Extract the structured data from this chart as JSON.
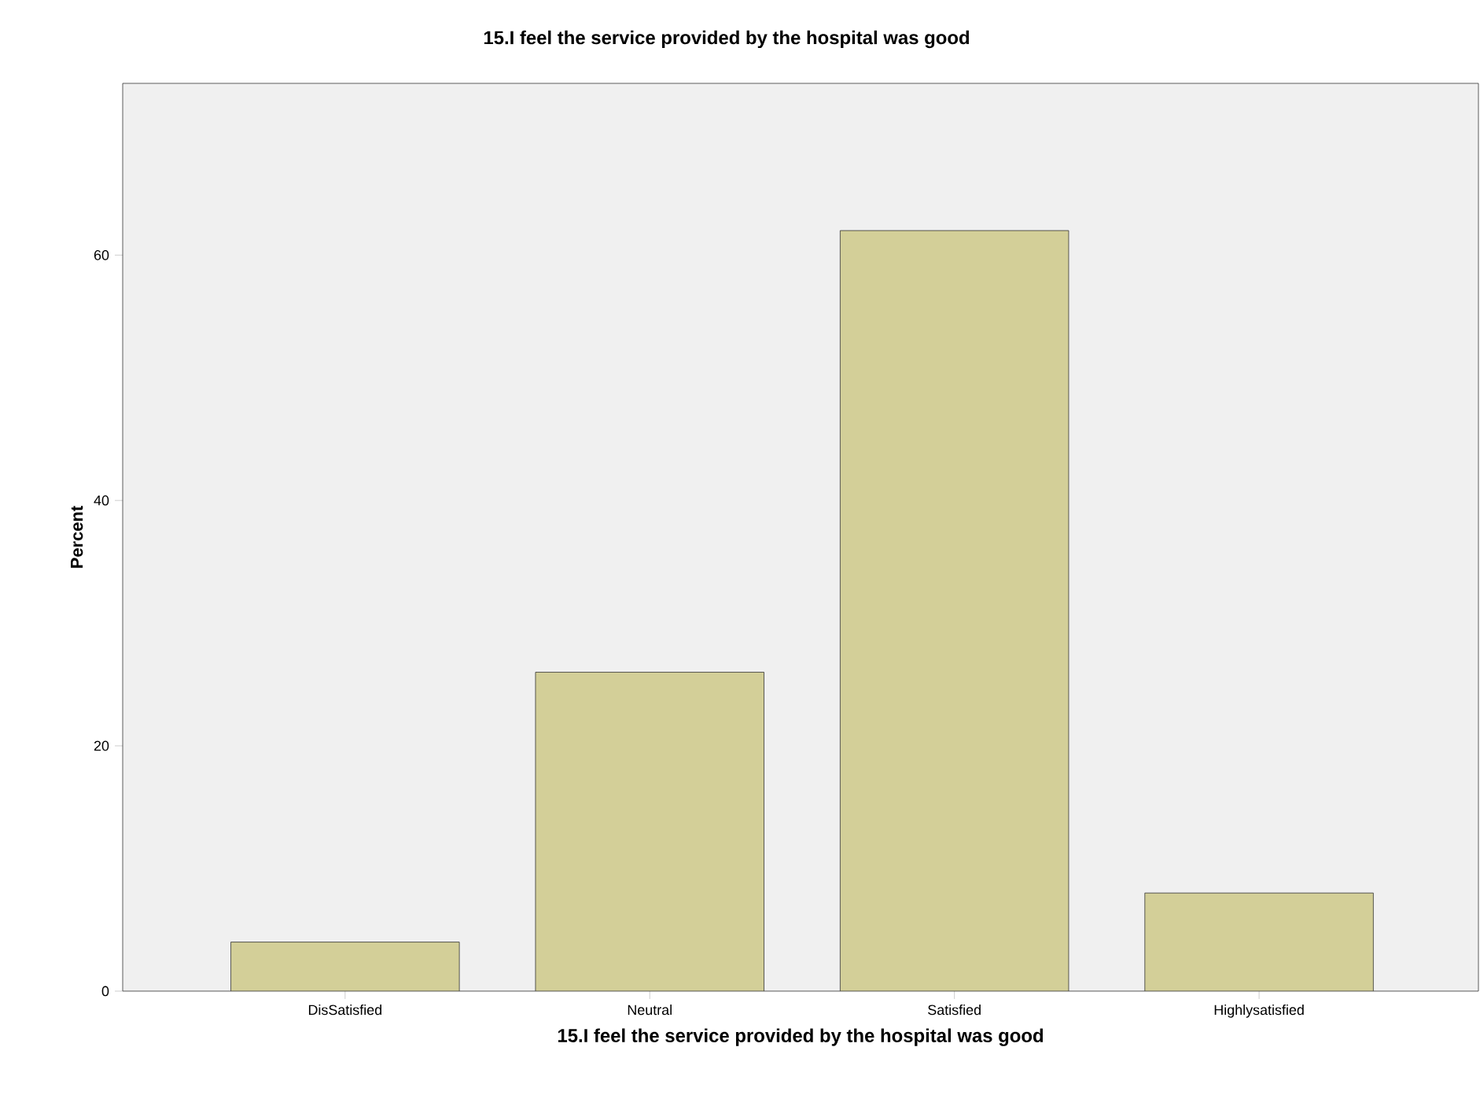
{
  "chart_data": {
    "type": "bar",
    "title": "15.I feel the service provided by the hospital was good",
    "xlabel": "15.I feel the service provided by the hospital was good",
    "ylabel": "Percent",
    "categories": [
      "DisSatisfied",
      "Neutral",
      "Satisfied",
      "Highlysatisfied"
    ],
    "values": [
      4,
      26,
      62,
      8
    ],
    "color": "#d3cf98",
    "ylim": [
      0,
      74
    ],
    "yticks": [
      0,
      20,
      40,
      60
    ],
    "grid": false
  }
}
